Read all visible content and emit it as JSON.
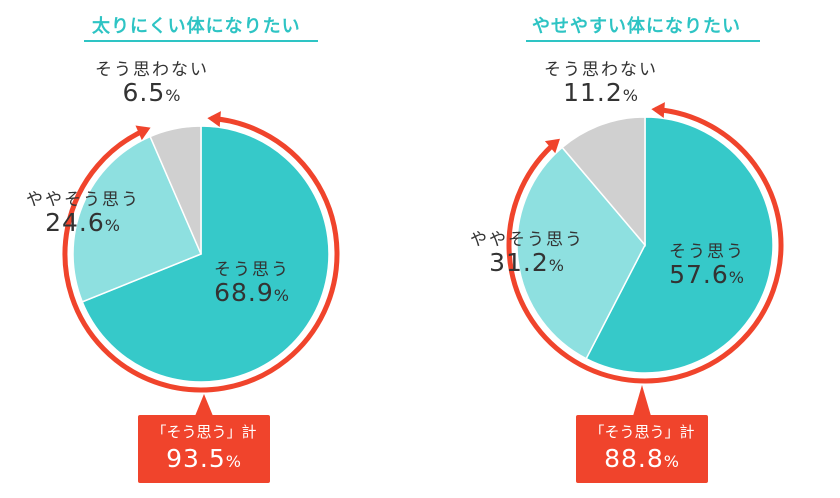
{
  "chart_data": [
    {
      "type": "pie",
      "title": "太りにくい体になりたい",
      "categories": [
        "そう思う",
        "ややそう思う",
        "そう思わない"
      ],
      "values": [
        68.9,
        24.6,
        6.5
      ],
      "unit": "%",
      "colors": [
        "#36c9c9",
        "#8ee0e0",
        "#d0d0d0"
      ],
      "labels": [
        "68.9",
        "24.6",
        "6.5"
      ],
      "total_label": "「そう思う」計",
      "total_value": "93.5",
      "total_span": 93.5
    },
    {
      "type": "pie",
      "title": "やせやすい体になりたい",
      "categories": [
        "そう思う",
        "ややそう思う",
        "そう思わない"
      ],
      "values": [
        57.6,
        31.2,
        11.2
      ],
      "unit": "%",
      "colors": [
        "#36c9c9",
        "#8ee0e0",
        "#d0d0d0"
      ],
      "labels": [
        "57.6",
        "31.2",
        "11.2"
      ],
      "total_label": "「そう思う」計",
      "total_value": "88.8",
      "total_span": 88.8
    }
  ],
  "accent_color": "#f0442c",
  "title_color": "#2ec4c4"
}
